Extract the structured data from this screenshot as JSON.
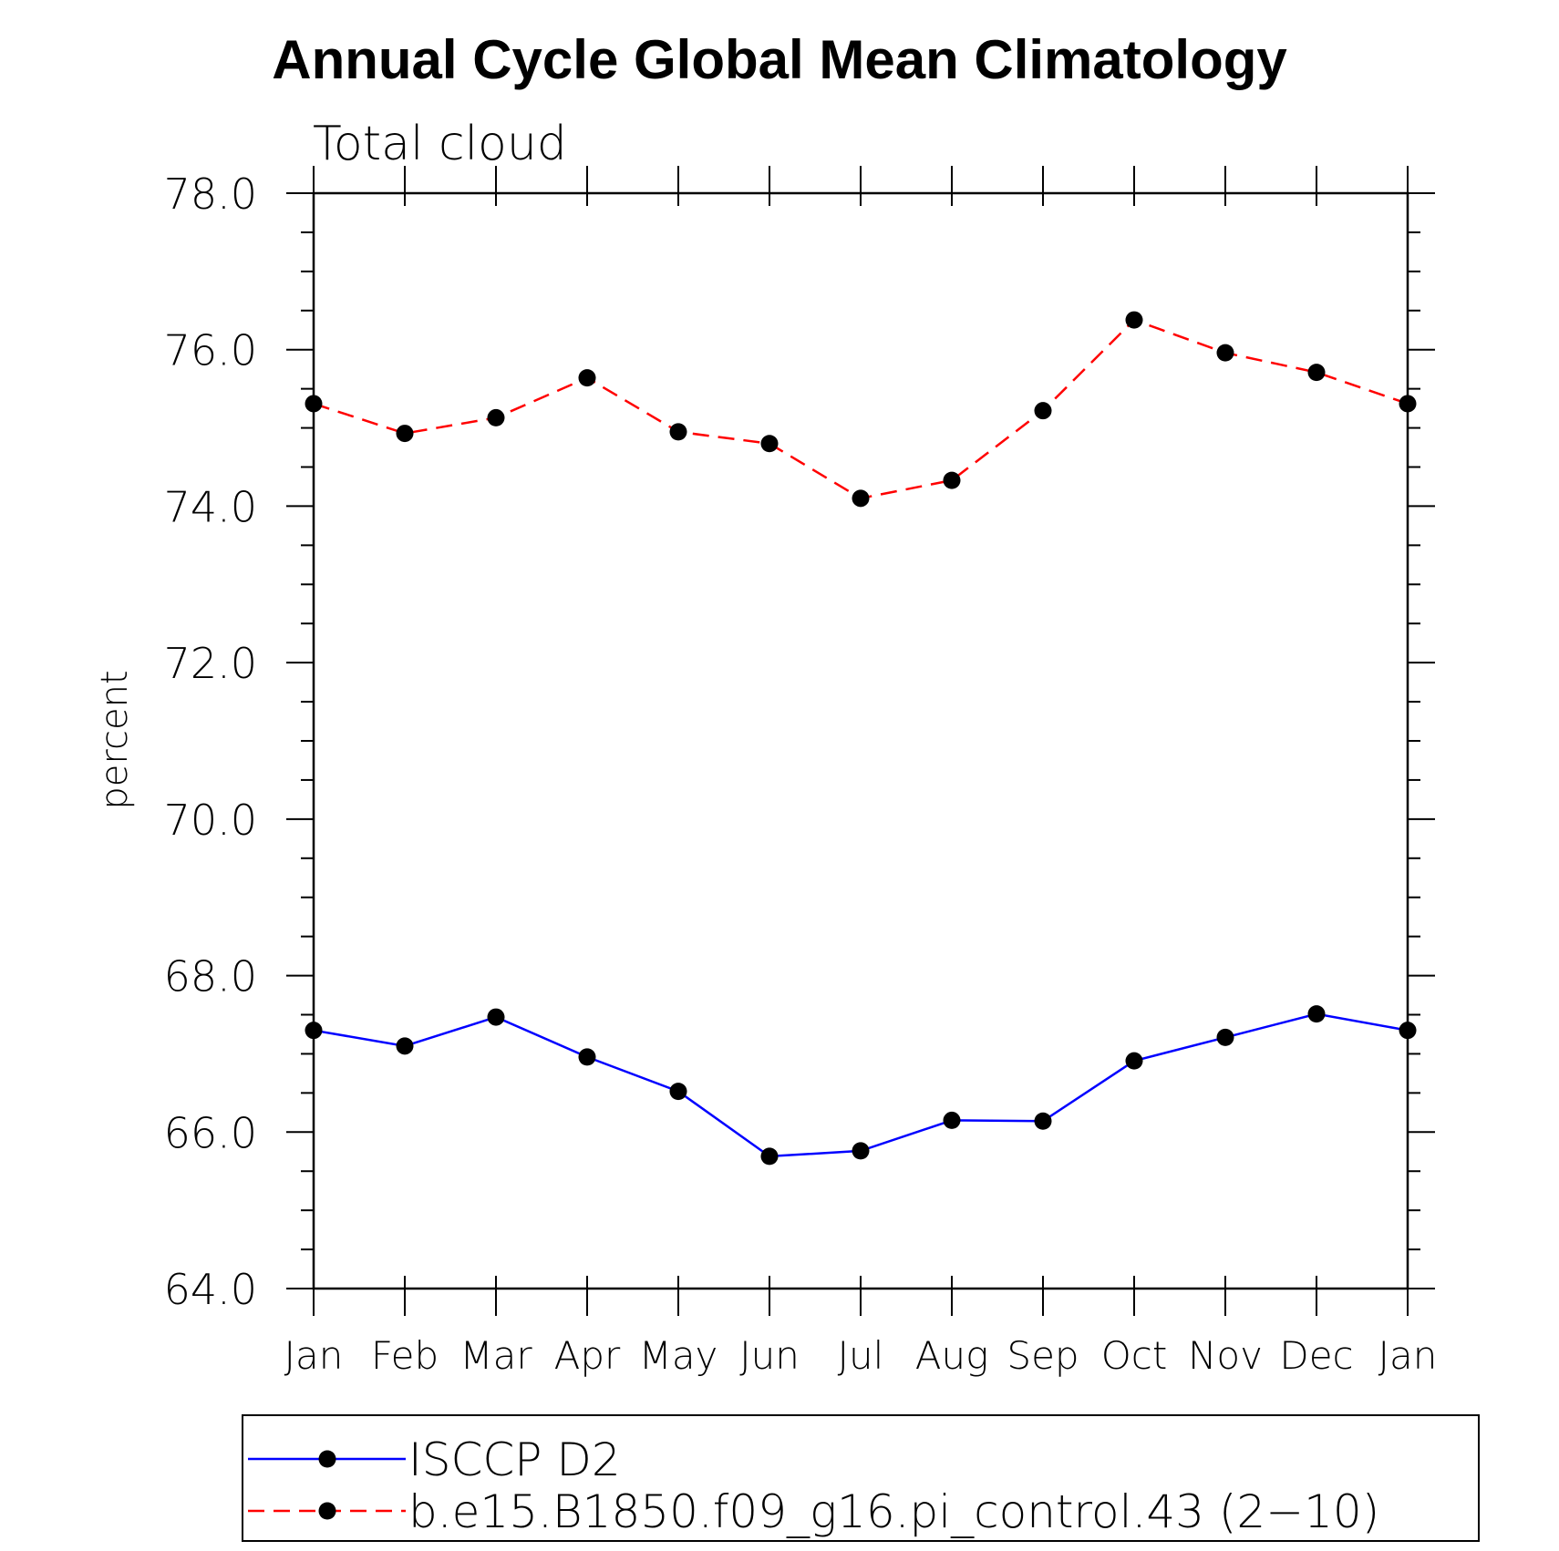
{
  "chart_data": {
    "type": "line",
    "title": "Annual Cycle Global Mean Climatology",
    "subtitle": "Total cloud",
    "xlabel": "",
    "ylabel": "percent",
    "categories": [
      "Jan",
      "Feb",
      "Mar",
      "Apr",
      "May",
      "Jun",
      "Jul",
      "Aug",
      "Sep",
      "Oct",
      "Nov",
      "Dec",
      "Jan"
    ],
    "ylim": [
      64.0,
      78.0
    ],
    "yticks": [
      "64.0",
      "66.0",
      "68.0",
      "70.0",
      "72.0",
      "74.0",
      "76.0",
      "78.0"
    ],
    "grid": false,
    "legend_position": "bottom",
    "series": [
      {
        "name": "ISCCP D2",
        "color": "#0000ff",
        "style": "solid",
        "marker": "filled-circle",
        "values": [
          67.3,
          67.1,
          67.47,
          66.96,
          66.52,
          65.69,
          65.76,
          66.15,
          66.14,
          66.91,
          67.21,
          67.51,
          67.3
        ]
      },
      {
        "name": "b.e15.B1850.f09_g16.pi_control.43 (2−10)",
        "color": "#ff0000",
        "style": "dashed",
        "marker": "filled-circle",
        "values": [
          75.31,
          74.93,
          75.13,
          75.64,
          74.95,
          74.8,
          74.1,
          74.33,
          75.22,
          76.38,
          75.96,
          75.71,
          75.31
        ]
      }
    ]
  }
}
